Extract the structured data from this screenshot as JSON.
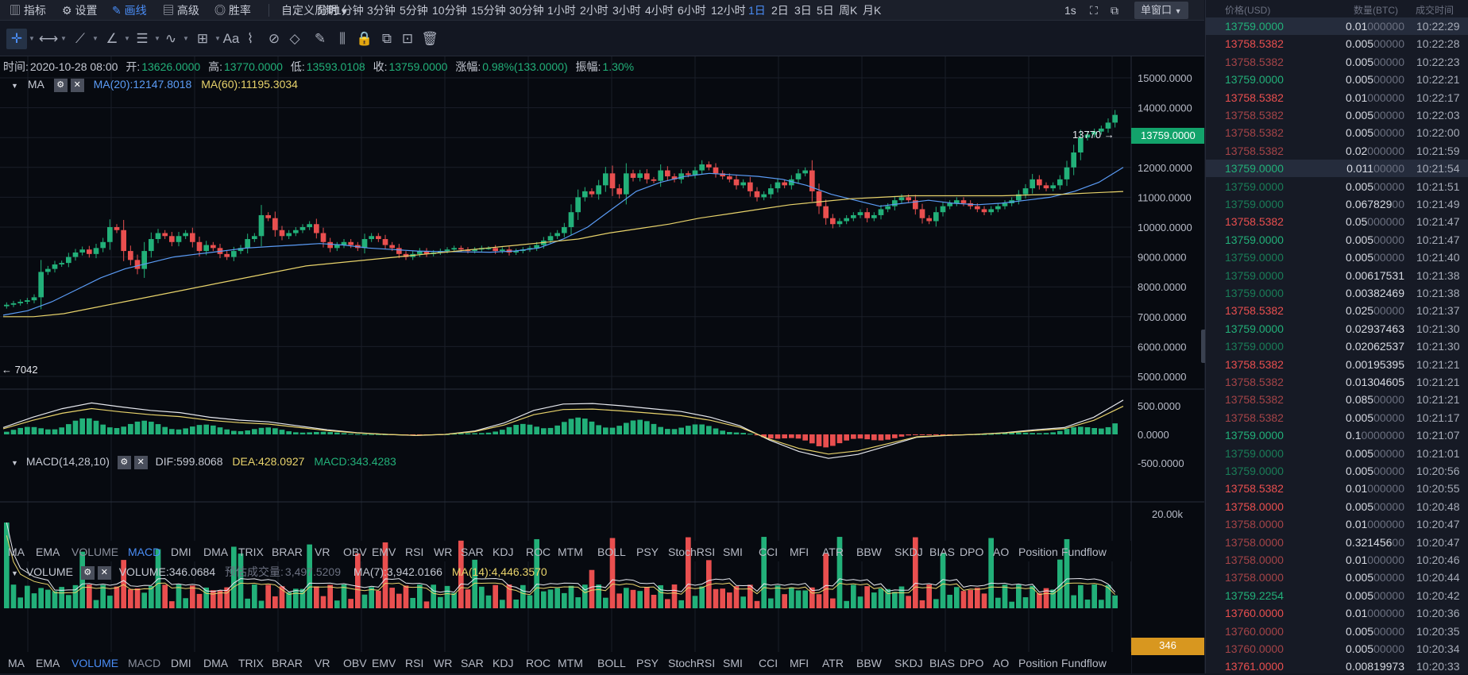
{
  "toolbar": {
    "items": [
      {
        "icon": "line-chart-icon",
        "label": "指标",
        "active": false
      },
      {
        "icon": "gear-icon",
        "label": "设置",
        "active": false
      },
      {
        "icon": "pen-icon",
        "label": "画线",
        "active": true
      },
      {
        "icon": "advanced-icon",
        "label": "高级",
        "active": false
      },
      {
        "icon": "target-icon",
        "label": "胜率",
        "active": false
      }
    ],
    "custom_period": "自定义周期",
    "periods": [
      "分时",
      "1分钟",
      "3分钟",
      "5分钟",
      "10分钟",
      "15分钟",
      "30分钟",
      "1小时",
      "2小时",
      "3小时",
      "4小时",
      "6小时",
      "12小时",
      "1日",
      "2日",
      "3日",
      "5日",
      "周K",
      "月K"
    ],
    "active_period": "1日",
    "interval": "1s",
    "window_mode": "单窗口"
  },
  "drawing_tools": [
    "crosshair-icon",
    "horizontal-segment-icon",
    "fib-icon",
    "angle-icon",
    "parallel-lines-icon",
    "wave-icon",
    "grid-box-icon",
    "text-icon",
    "pattern-icon",
    "eraser-alt-icon",
    "ruler-icon",
    "brush-icon",
    "range-icon",
    "lock-icon",
    "copy-icon",
    "screenshot-icon",
    "trash-icon"
  ],
  "info_bar": {
    "time_label": "时间:",
    "time": "2020-10-28 08:00",
    "open_label": "开:",
    "open": "13626.0000",
    "high_label": "高:",
    "high": "13770.0000",
    "low_label": "低:",
    "low": "13593.0108",
    "close_label": "收:",
    "close": "13759.0000",
    "change_label": "涨幅:",
    "change": "0.98%(133.0000)",
    "amp_label": "振幅:",
    "amp": "1.30%"
  },
  "ma_legend": {
    "name": "MA",
    "ma20": "MA(20):12147.8018",
    "ma60": "MA(60):11195.3034"
  },
  "macd_legend": {
    "name": "MACD(14,28,10)",
    "dif": "DIF:599.8068",
    "dea": "DEA:428.0927",
    "macd": "MACD:343.4283"
  },
  "volume_legend": {
    "name": "VOLUME",
    "volume": "VOLUME:346.0684",
    "est_label": "预估成交量:",
    "est": "3,497.5209",
    "ma7": "MA(7):3,942.0166",
    "ma14": "MA(14):4,446.3570"
  },
  "indicator_tabs": [
    "MA",
    "EMA",
    "VOLUME",
    "MACD",
    "DMI",
    "DMA",
    "TRIX",
    "BRAR",
    "VR",
    "OBV",
    "EMV",
    "RSI",
    "WR",
    "SAR",
    "KDJ",
    "ROC",
    "MTM",
    "BOLL",
    "PSY",
    "StochRSI",
    "SMI",
    "CCI",
    "MFI",
    "ATR",
    "BBW",
    "SKDJ",
    "BIAS",
    "DPO",
    "AO",
    "Position",
    "Fundflow"
  ],
  "active_indicator_macd_row": [
    "VOLUME",
    "MACD"
  ],
  "price_axis": [
    "15000.0000",
    "14000.0000",
    "13000.0000",
    "12000.0000",
    "11000.0000",
    "10000.0000",
    "9000.0000",
    "8000.0000",
    "7000.0000",
    "6000.0000",
    "5000.0000"
  ],
  "macd_axis": [
    "500.0000",
    "0.0000",
    "-500.0000"
  ],
  "volume_axis": [
    "20.00k"
  ],
  "current_price_tag": "13759.0000",
  "volume_tag": "346",
  "max_label": "13770",
  "min_label": "7042",
  "colors": {
    "up": "#22b079",
    "down": "#e94f4f",
    "ma20": "#5b9cf6",
    "ma60": "#e8d36b",
    "accent": "#4a8df6"
  },
  "chart_data": {
    "type": "candlestick",
    "price_range": [
      4600,
      15500
    ],
    "candle_closes_approx": [
      7400,
      7450,
      7500,
      7550,
      7650,
      8500,
      8600,
      8750,
      8800,
      9000,
      9150,
      9250,
      9100,
      9300,
      9500,
      10000,
      9900,
      9200,
      8900,
      8600,
      9200,
      9600,
      9800,
      9700,
      9500,
      9700,
      9800,
      9500,
      9200,
      9400,
      9300,
      9100,
      9000,
      9200,
      9300,
      9600,
      9700,
      10400,
      10300,
      9900,
      9700,
      9800,
      9900,
      10000,
      10100,
      9800,
      9500,
      9300,
      9400,
      9500,
      9400,
      9300,
      9600,
      9700,
      9600,
      9400,
      9300,
      9100,
      9000,
      9100,
      9200,
      9100,
      9150,
      9200,
      9250,
      9300,
      9250,
      9200,
      9250,
      9300,
      9300,
      9200,
      9250,
      9150,
      9200,
      9250,
      9300,
      9400,
      9550,
      9700,
      9800,
      10000,
      10500,
      11000,
      11200,
      11100,
      11400,
      11800,
      11300,
      11100,
      11800,
      11650,
      11800,
      11600,
      11550,
      11900,
      11700,
      11600,
      11800,
      11750,
      11900,
      12100,
      12000,
      11800,
      11700,
      11600,
      11400,
      11500,
      11200,
      11000,
      11100,
      11300,
      11500,
      11400,
      11600,
      11800,
      11900,
      11200,
      10700,
      10300,
      10100,
      10200,
      10300,
      10400,
      10500,
      10300,
      10400,
      10600,
      10700,
      10900,
      11000,
      10900,
      10600,
      10300,
      10200,
      10500,
      10700,
      10800,
      10900,
      10800,
      10700,
      10600,
      10500,
      10600,
      10700,
      10800,
      10900,
      11100,
      11300,
      11600,
      11400,
      11300,
      11400,
      11600,
      12000,
      12500,
      13000,
      13100,
      13200,
      13300,
      13500,
      13759
    ],
    "ma20_approx": [
      7050,
      7200,
      7500,
      7900,
      8300,
      8600,
      8800,
      9000,
      9100,
      9200,
      9300,
      9350,
      9400,
      9450,
      9400,
      9300,
      9250,
      9200,
      9180,
      9170,
      9160,
      9200,
      9300,
      9600,
      10000,
      10600,
      11200,
      11500,
      11700,
      11800,
      11750,
      11700,
      11600,
      11400,
      11100,
      10900,
      10700,
      10800,
      10900,
      10800,
      10750,
      10800,
      10900,
      11000,
      11200,
      11500,
      12000
    ],
    "ma60_approx": [
      7000,
      7000,
      7100,
      7300,
      7500,
      7700,
      7900,
      8100,
      8300,
      8500,
      8700,
      8800,
      8900,
      9000,
      9100,
      9200,
      9300,
      9400,
      9500,
      9600,
      9800,
      9950,
      10100,
      10300,
      10450,
      10600,
      10750,
      10850,
      10950,
      11000,
      11050,
      11050,
      11050,
      11050,
      11080,
      11100,
      11150,
      11195
    ],
    "macd_dif_approx": [
      120,
      300,
      450,
      550,
      480,
      420,
      380,
      300,
      250,
      220,
      150,
      80,
      30,
      0,
      -20,
      0,
      60,
      200,
      420,
      530,
      540,
      500,
      450,
      400,
      300,
      150,
      -100,
      -300,
      -420,
      -350,
      -200,
      -50,
      -20,
      0,
      30,
      80,
      120,
      300,
      600
    ],
    "volume_up_down": "mixed"
  }
}
